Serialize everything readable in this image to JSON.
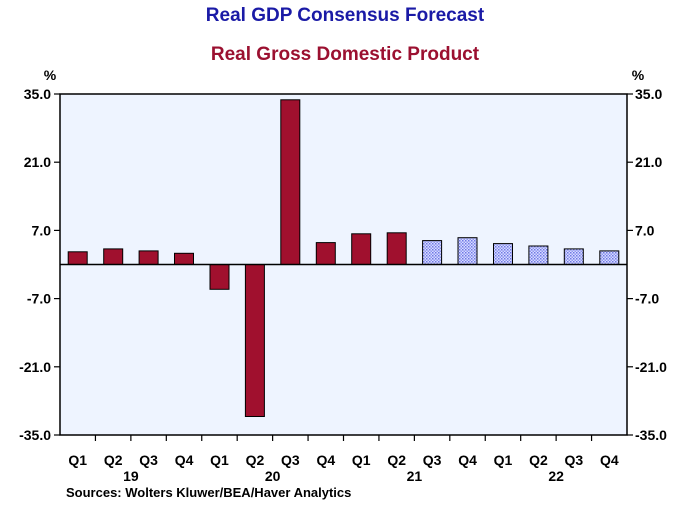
{
  "chart_data": {
    "type": "bar",
    "title": "Real GDP Consensus Forecast",
    "subtitle": "Real Gross Domestic Product",
    "unit_left": "%",
    "unit_right": "%",
    "ylim": [
      -35,
      35
    ],
    "yticks": [
      "35.0",
      "21.0",
      "7.0",
      "-7.0",
      "-21.0",
      "-35.0"
    ],
    "categories": [
      "Q1",
      "Q2",
      "Q3",
      "Q4",
      "Q1",
      "Q2",
      "Q3",
      "Q4",
      "Q1",
      "Q2",
      "Q3",
      "Q4",
      "Q1",
      "Q2",
      "Q3",
      "Q4"
    ],
    "years": [
      {
        "label": "19",
        "start": 0,
        "end": 3
      },
      {
        "label": "20",
        "start": 4,
        "end": 7
      },
      {
        "label": "21",
        "start": 8,
        "end": 11
      },
      {
        "label": "22",
        "start": 12,
        "end": 15
      }
    ],
    "series": [
      {
        "values": [
          2.6,
          3.2,
          2.8,
          2.3,
          -5.1,
          -31.2,
          33.8,
          4.5,
          6.3,
          6.5,
          null,
          null,
          null,
          null,
          null,
          null
        ],
        "color": "#a0102e"
      },
      {
        "values": [
          null,
          null,
          null,
          null,
          null,
          null,
          null,
          null,
          null,
          null,
          4.9,
          5.5,
          4.3,
          3.8,
          3.2,
          2.8
        ],
        "color": "#b8c0ff"
      }
    ],
    "grid": false,
    "source": "Sources:   Wolters Kluwer/BEA/Haver Analytics"
  }
}
